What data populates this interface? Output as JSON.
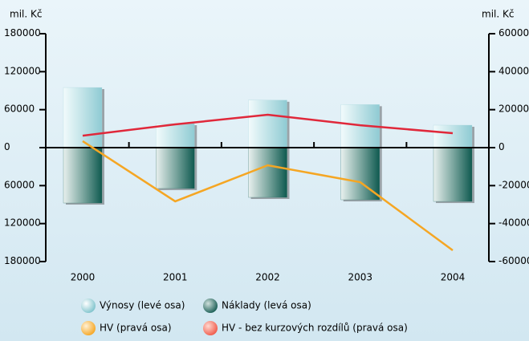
{
  "chart_data": {
    "type": "bar-line",
    "y_label": "mil. Kč",
    "y2_label": "mil. Kč",
    "categories": [
      "2000",
      "2001",
      "2002",
      "2003",
      "2004"
    ],
    "series": [
      {
        "name": "Výnosy (levé osa)",
        "type": "bar",
        "color": "#a9d6dc",
        "values": [
          95000,
          38000,
          75000,
          68000,
          35500
        ]
      },
      {
        "name": "Náklady (levá osa)",
        "type": "bar",
        "color": "#2e6e66",
        "values": [
          -87500,
          -64600,
          -78600,
          -82400,
          -85000
        ]
      },
      {
        "name": "HV (pravá osa)",
        "type": "line",
        "axis": "y2",
        "color": "#f5a623",
        "values": [
          3400,
          -28300,
          -9300,
          -18200,
          -54100
        ]
      },
      {
        "name": "HV - bez kurzových rozdílů (pravá osa)",
        "type": "line",
        "axis": "y2",
        "color": "#e0283a",
        "values": [
          6300,
          12250,
          17300,
          11800,
          7600
        ]
      }
    ],
    "ylim": [
      -180000,
      180000
    ],
    "yticks": [
      {
        "value": -180000,
        "label": "180000"
      },
      {
        "value": -120000,
        "label": "120000"
      },
      {
        "value": -60000,
        "label": "60000"
      },
      0,
      60000,
      120000,
      180000
    ],
    "y2lim": [
      -60000,
      60000
    ],
    "y2ticks": [
      -60000,
      -40000,
      -20000,
      0,
      20000,
      40000,
      60000
    ]
  }
}
